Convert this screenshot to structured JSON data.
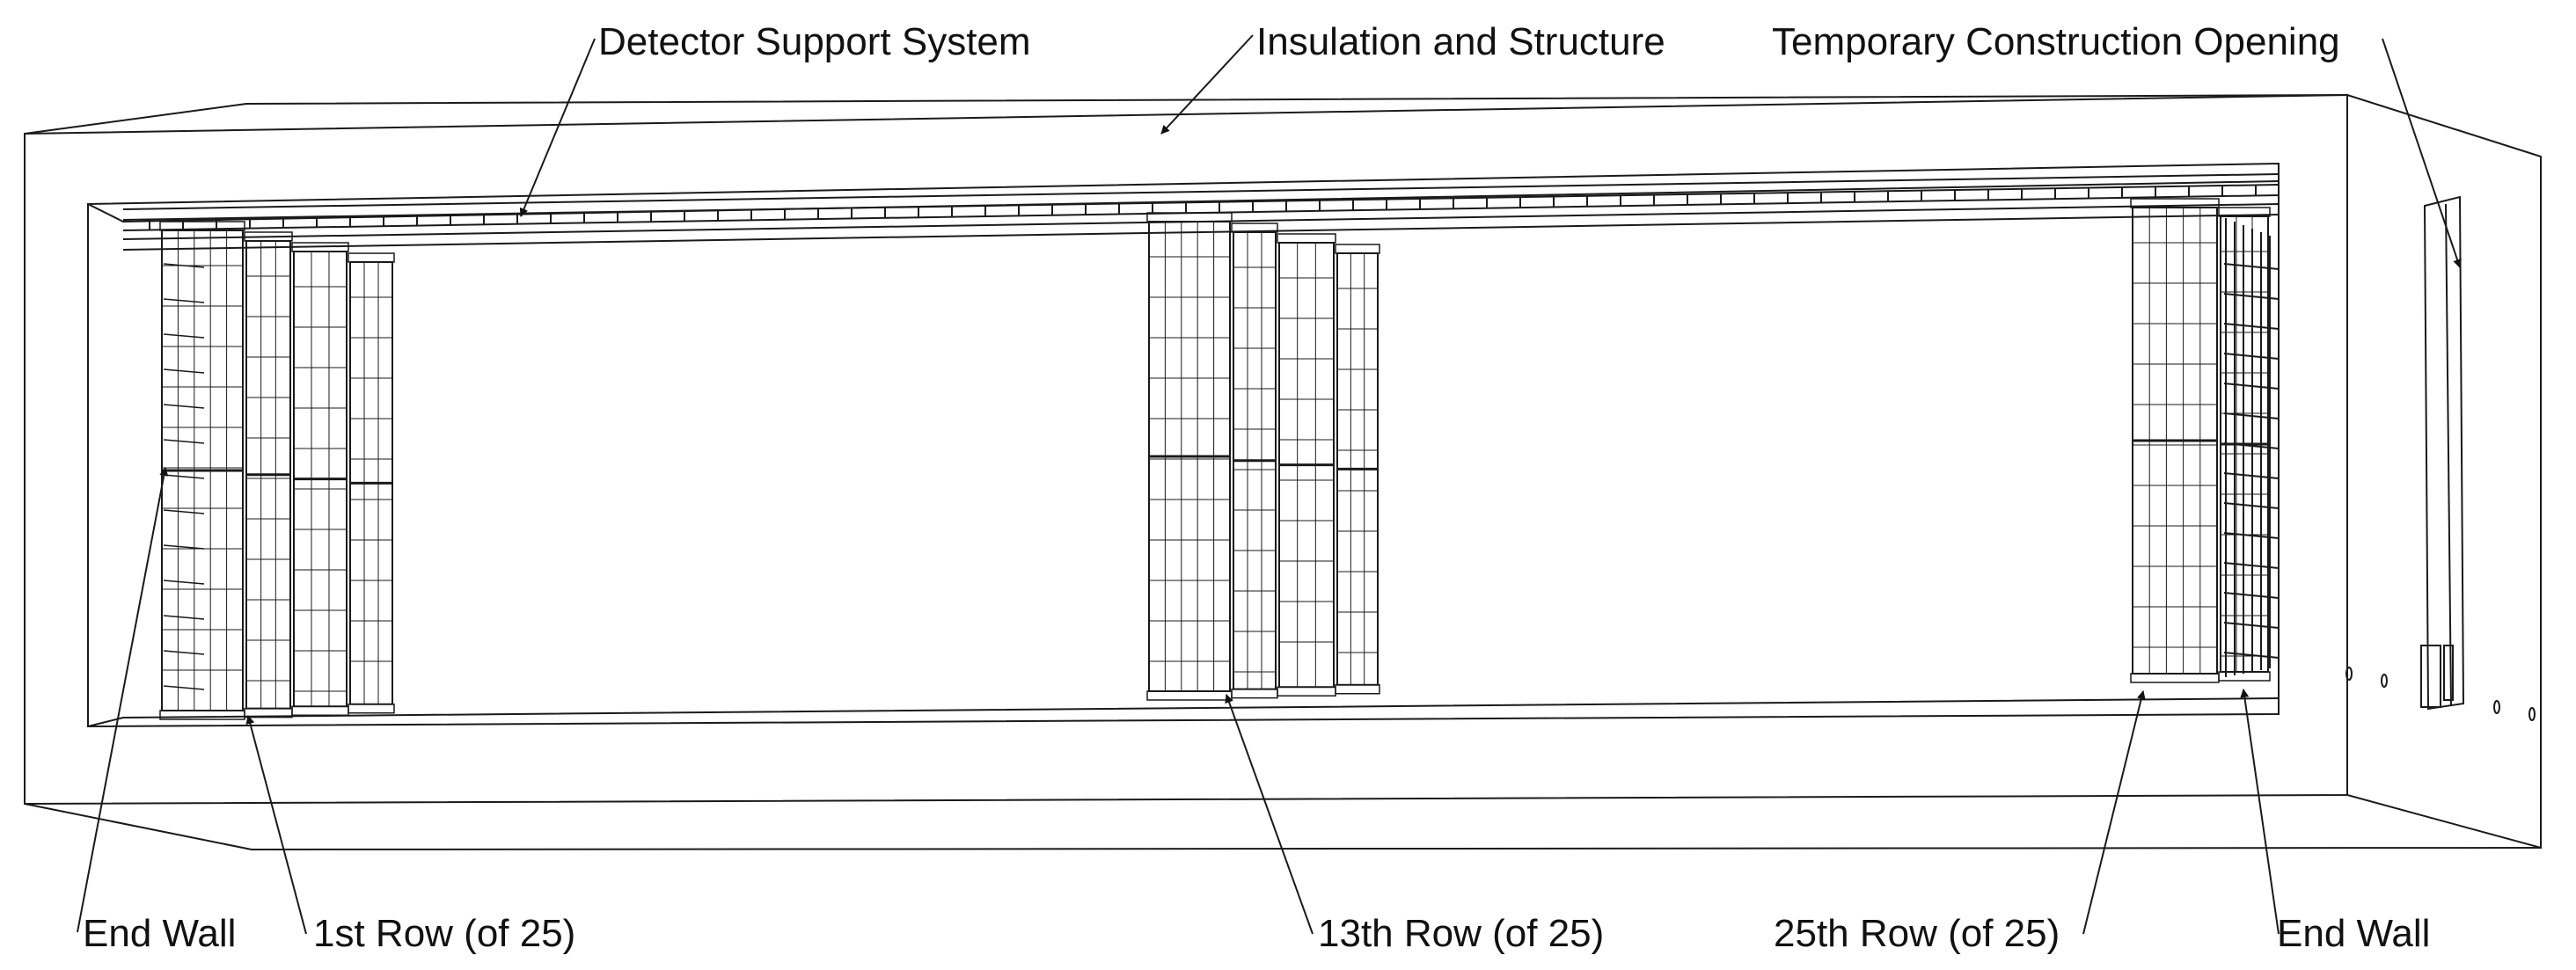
{
  "labels": {
    "detector_support": "Detector Support System",
    "insulation": "Insulation and Structure",
    "construction_opening": "Temporary Construction Opening",
    "end_wall_left": "End Wall",
    "row_first": "1st Row (of 25)",
    "row_middle": "13th Row (of 25)",
    "row_last": "25th Row (of 25)",
    "end_wall_right": "End Wall"
  },
  "colors": {
    "line": "#1a1a1a",
    "background": "#ffffff"
  }
}
